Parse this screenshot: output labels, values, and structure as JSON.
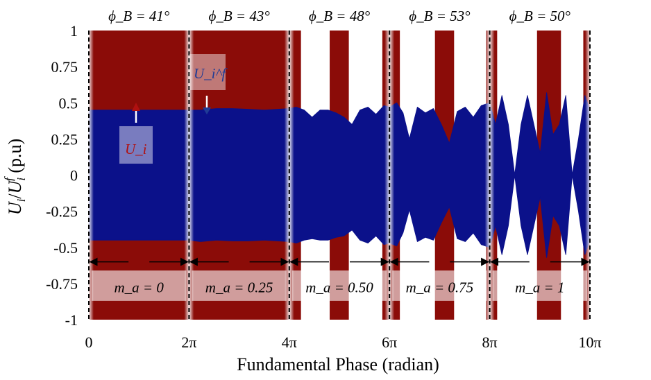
{
  "chart_data": {
    "type": "area",
    "xlabel": "Fundamental Phase (radian)",
    "ylabel": "U_i/U_i^f (p.u)",
    "xlim": [
      0,
      31.416
    ],
    "ylim": [
      -1,
      1
    ],
    "x_ticks": [
      {
        "value": 0,
        "label": "0"
      },
      {
        "value": 6.2832,
        "label": "2π"
      },
      {
        "value": 12.5664,
        "label": "4π"
      },
      {
        "value": 18.8496,
        "label": "6π"
      },
      {
        "value": 25.1327,
        "label": "8π"
      },
      {
        "value": 31.4159,
        "label": "10π"
      }
    ],
    "y_ticks": [
      {
        "value": 1,
        "label": "1"
      },
      {
        "value": 0.75,
        "label": "0.75"
      },
      {
        "value": 0.5,
        "label": "0.5"
      },
      {
        "value": 0.25,
        "label": "0.25"
      },
      {
        "value": 0,
        "label": "0"
      },
      {
        "value": -0.25,
        "label": "-0.25"
      },
      {
        "value": -0.5,
        "label": "-0.5"
      },
      {
        "value": -0.75,
        "label": "-0.75"
      },
      {
        "value": -1,
        "label": "-1"
      }
    ],
    "segments": [
      {
        "phi_label": "ϕ_B = 41°",
        "ma_label": "m_a = 0",
        "x_start": 0,
        "x_end": 6.2832,
        "gaps": []
      },
      {
        "phi_label": "ϕ_B = 43°",
        "ma_label": "m_a = 0.25",
        "x_start": 6.2832,
        "x_end": 12.5664,
        "gaps": []
      },
      {
        "phi_label": "ϕ_B = 48°",
        "ma_label": "m_a = 0.50",
        "x_start": 12.5664,
        "x_end": 18.8496,
        "gaps": [
          [
            13.3,
            15.1
          ],
          [
            16.3,
            18.4
          ]
        ]
      },
      {
        "phi_label": "ϕ_B = 53°",
        "ma_label": "m_a = 0.75",
        "x_start": 18.8496,
        "x_end": 25.1327,
        "gaps": [
          [
            19.5,
            21.7
          ],
          [
            22.9,
            24.9
          ]
        ]
      },
      {
        "phi_label": "ϕ_B = 50°",
        "ma_label": "m_a = 1",
        "x_start": 25.1327,
        "x_end": 31.4159,
        "gaps": [
          [
            25.6,
            28.1
          ],
          [
            29.6,
            31.0
          ]
        ]
      }
    ],
    "series": [
      {
        "name": "U_i",
        "color": "#8b0c08",
        "description_values": "switching waveform spanning -1 to 1 (dense fill)"
      },
      {
        "name": "U_i^f",
        "color": "#0b118a",
        "x": [
          0,
          1,
          2,
          3,
          4,
          5,
          6.28,
          7,
          8,
          9,
          10,
          11,
          12.57,
          13,
          13.5,
          14,
          14.5,
          15,
          15.5,
          16,
          16.5,
          17,
          17.5,
          18,
          18.5,
          18.85,
          19.3,
          19.7,
          20.1,
          20.6,
          21.1,
          21.6,
          22.1,
          22.6,
          23.1,
          23.6,
          24.1,
          24.6,
          25.13,
          25.5,
          25.9,
          26.3,
          26.7,
          27.1,
          27.5,
          27.9,
          28.3,
          28.7,
          29.1,
          29.5,
          29.9,
          30.3,
          30.7,
          31.1,
          31.42
        ],
        "upper": [
          0.45,
          0.45,
          0.45,
          0.45,
          0.45,
          0.45,
          0.45,
          0.45,
          0.46,
          0.46,
          0.455,
          0.45,
          0.46,
          0.47,
          0.45,
          0.4,
          0.45,
          0.45,
          0.43,
          0.4,
          0.35,
          0.45,
          0.47,
          0.42,
          0.48,
          0.47,
          0.5,
          0.43,
          0.25,
          0.47,
          0.43,
          0.46,
          0.35,
          0.22,
          0.44,
          0.47,
          0.4,
          0.48,
          0.5,
          0.35,
          0.55,
          0.35,
          0.0,
          0.35,
          0.55,
          0.35,
          0.15,
          0.57,
          0.28,
          0.35,
          0.55,
          0.0,
          0.25,
          0.55,
          0.45
        ],
        "lower": [
          -0.45,
          -0.45,
          -0.45,
          -0.45,
          -0.45,
          -0.45,
          -0.45,
          -0.46,
          -0.45,
          -0.455,
          -0.455,
          -0.45,
          -0.46,
          -0.47,
          -0.45,
          -0.44,
          -0.45,
          -0.45,
          -0.43,
          -0.42,
          -0.38,
          -0.45,
          -0.47,
          -0.42,
          -0.48,
          -0.47,
          -0.49,
          -0.4,
          -0.24,
          -0.46,
          -0.43,
          -0.45,
          -0.33,
          -0.22,
          -0.44,
          -0.46,
          -0.4,
          -0.48,
          -0.5,
          -0.35,
          -0.55,
          -0.35,
          0.0,
          -0.35,
          -0.55,
          -0.35,
          -0.15,
          -0.57,
          -0.28,
          -0.35,
          -0.55,
          0.0,
          -0.25,
          -0.55,
          -0.45
        ]
      }
    ],
    "annotations": [
      {
        "text": "U_i^f",
        "color": "#1f3c96"
      },
      {
        "text": "U_i",
        "color": "#b01010"
      }
    ],
    "grid": false,
    "legend": "none"
  }
}
